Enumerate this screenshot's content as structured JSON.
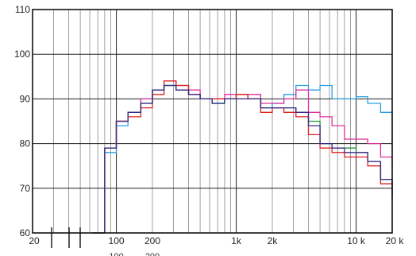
{
  "chart_data": {
    "type": "line",
    "x_scale": "log",
    "y_scale": "linear",
    "xlim": [
      20,
      20000
    ],
    "ylim": [
      60,
      110
    ],
    "grid": true,
    "legend": "none",
    "title": "",
    "xlabel": "",
    "ylabel": "",
    "y_ticks": [
      {
        "value": 110,
        "label": "110"
      },
      {
        "value": 100,
        "label": "100"
      },
      {
        "value": 90,
        "label": "90"
      },
      {
        "value": 80,
        "label": "80"
      },
      {
        "value": 70,
        "label": "70"
      },
      {
        "value": 60,
        "label": "60"
      }
    ],
    "x_ticks": [
      {
        "value": 20,
        "label": "20"
      },
      {
        "value": 100,
        "label": "100"
      },
      {
        "value": 200,
        "label": "200"
      },
      {
        "value": 1000,
        "label": "1k"
      },
      {
        "value": 2000,
        "label": "2k"
      },
      {
        "value": 10000,
        "label": "10 k"
      },
      {
        "value": 20000,
        "label": "20 k"
      }
    ],
    "stray_labels": [
      {
        "value": 100,
        "label": "100"
      },
      {
        "value": 200,
        "label": "200"
      }
    ],
    "series": [
      {
        "color": "#2a9fe0",
        "x": [
          63,
          80,
          100,
          125,
          160,
          200,
          250,
          315,
          400,
          500,
          630,
          800,
          1000,
          1250,
          1600,
          2000,
          2500,
          3150,
          4000,
          5000,
          6300,
          8000,
          10000,
          12500,
          16000,
          20000
        ],
        "y": [
          60,
          78,
          84,
          87,
          90,
          92,
          93,
          92,
          91,
          90,
          89,
          90,
          91,
          90,
          88,
          89,
          91,
          93,
          92,
          93,
          90,
          90,
          90.5,
          89,
          87,
          78
        ]
      },
      {
        "color": "#e0309a",
        "x": [
          63,
          80,
          100,
          125,
          160,
          200,
          250,
          315,
          400,
          500,
          630,
          800,
          1000,
          1250,
          1600,
          2000,
          2500,
          3150,
          4000,
          5000,
          6300,
          8000,
          10000,
          12500,
          16000,
          20000
        ],
        "y": [
          60,
          79,
          85,
          87,
          90,
          92,
          94,
          93,
          92,
          90,
          90,
          91,
          91,
          91,
          89,
          89,
          90,
          92,
          87,
          86,
          84,
          81,
          81,
          80,
          77,
          75
        ]
      },
      {
        "color": "#1a9a3a",
        "x": [
          63,
          80,
          100,
          125,
          160,
          200,
          250,
          315,
          400,
          500,
          630,
          800,
          1000,
          1250,
          1600,
          2000,
          2500,
          3150,
          4000,
          5000,
          6300,
          8000,
          10000,
          12500,
          16000,
          20000
        ],
        "y": [
          60,
          79,
          85,
          87,
          89,
          92,
          93,
          92,
          91,
          90,
          89,
          90,
          91,
          90,
          88,
          88,
          88,
          87,
          85,
          80,
          79,
          79,
          78,
          76,
          72,
          69
        ]
      },
      {
        "color": "#e02020",
        "x": [
          63,
          80,
          100,
          125,
          160,
          200,
          250,
          315,
          400,
          500,
          630,
          800,
          1000,
          1250,
          1600,
          2000,
          2500,
          3150,
          4000,
          5000,
          6300,
          8000,
          10000,
          12500,
          16000,
          20000
        ],
        "y": [
          60,
          79,
          85,
          86,
          88,
          91,
          94,
          93,
          91,
          90,
          90,
          90,
          91,
          90,
          87,
          88,
          87,
          86,
          82,
          79,
          78,
          77,
          77,
          75,
          71,
          67
        ]
      },
      {
        "color": "#3a2a8a",
        "x": [
          63,
          80,
          100,
          125,
          160,
          200,
          250,
          315,
          400,
          500,
          630,
          800,
          1000,
          1250,
          1600,
          2000,
          2500,
          3150,
          4000,
          5000,
          6300,
          8000,
          10000,
          12500,
          16000,
          20000
        ],
        "y": [
          60,
          79,
          85,
          87,
          89,
          92,
          93,
          92,
          91,
          90,
          89,
          90,
          90,
          90,
          88,
          88,
          88,
          87,
          84,
          80,
          79,
          78,
          78,
          76,
          72,
          68
        ]
      }
    ]
  }
}
